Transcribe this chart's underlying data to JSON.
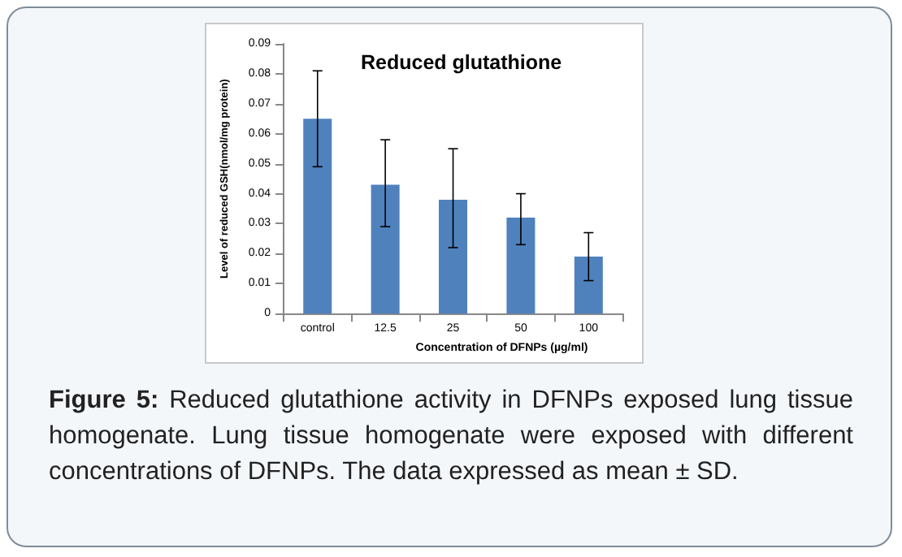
{
  "chart_data": {
    "type": "bar",
    "title": "Reduced glutathione",
    "xlabel": "Concentration of DFNPs (µg/ml)",
    "ylabel": "Level of reduced GSH(nmol/mg protein)",
    "categories": [
      "control",
      "12.5",
      "25",
      "50",
      "100"
    ],
    "values": [
      0.065,
      0.043,
      0.038,
      0.032,
      0.019
    ],
    "errors": [
      [
        0.049,
        0.081
      ],
      [
        0.029,
        0.058
      ],
      [
        0.022,
        0.055
      ],
      [
        0.023,
        0.04
      ],
      [
        0.011,
        0.027
      ]
    ],
    "color": "#4f81bd",
    "ylim": [
      0,
      0.09
    ],
    "yticks": [
      0,
      0.01,
      0.02,
      0.03,
      0.04,
      0.05,
      0.06,
      0.07,
      0.08,
      0.09
    ],
    "grid": false,
    "annotations": [
      "Figure 5: Reduced glutathione activity in DFNPs exposed lung tissue homogenate. Lung tissue homogenate were exposed with different concentrations of DFNPs. The data expressed as mean ± SD."
    ]
  }
}
